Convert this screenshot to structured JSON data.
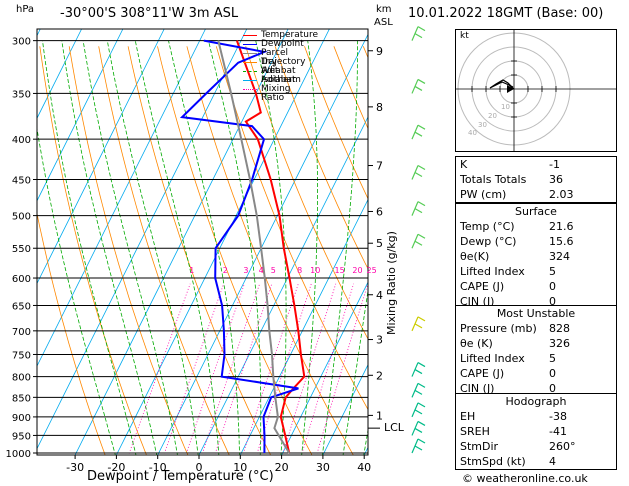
{
  "header": {
    "location": "-30°00'S  308°11'W  3m  ASL",
    "datetime": "10.01.2022  18GMT  (Base: 00)",
    "pressure_unit": "hPa",
    "height_unit_top": "km",
    "height_unit_bottom": "ASL"
  },
  "axes": {
    "xlabel": "Dewpoint / Temperature (°C)",
    "mixing_ratio_label": "Mixing Ratio (g/kg)",
    "lcl_label": "LCL"
  },
  "chart_data": {
    "type": "line",
    "title": "",
    "xlabel": "Dewpoint / Temperature (°C)",
    "ylabel": "hPa",
    "x_ticks": [
      -30,
      -20,
      -10,
      0,
      10,
      20,
      30,
      40
    ],
    "xlim": [
      -35,
      40
    ],
    "p_ticks": [
      300,
      350,
      400,
      450,
      500,
      550,
      600,
      650,
      700,
      750,
      800,
      850,
      900,
      950,
      1000
    ],
    "ylim": [
      1010,
      300
    ],
    "km_ticks": [
      {
        "p": 309,
        "km": "9"
      },
      {
        "p": 364,
        "km": "8"
      },
      {
        "p": 432,
        "km": "7"
      },
      {
        "p": 494,
        "km": "6"
      },
      {
        "p": 542,
        "km": "5"
      },
      {
        "p": 630,
        "km": "4"
      },
      {
        "p": 718,
        "km": "3"
      },
      {
        "p": 797,
        "km": "2"
      },
      {
        "p": 896,
        "km": "1"
      }
    ],
    "mixing_ratio_lines": [
      "1",
      "2",
      "3",
      "4",
      "5",
      "8",
      "10",
      "15",
      "20",
      "25"
    ],
    "legend": [
      "Temperature",
      "Dewpoint",
      "Parcel Trajectory",
      "Dry Adiabat",
      "Wet Adiabat",
      "Isotherm",
      "Mixing Ratio"
    ],
    "legend_colors": [
      "#ff0000",
      "#0000ff",
      "#888888",
      "#ff8800",
      "#00aa00",
      "#00aaee",
      "#ff00aa"
    ],
    "series": [
      {
        "name": "Temperature",
        "color": "#ff0000",
        "points": [
          [
            1000,
            21.6
          ],
          [
            950,
            18.5
          ],
          [
            900,
            15.2
          ],
          [
            850,
            14.0
          ],
          [
            828,
            14.8
          ],
          [
            800,
            16.0
          ],
          [
            750,
            12.5
          ],
          [
            700,
            9.0
          ],
          [
            650,
            5.0
          ],
          [
            600,
            0.5
          ],
          [
            550,
            -4.5
          ],
          [
            500,
            -9.5
          ],
          [
            450,
            -16.0
          ],
          [
            400,
            -24.0
          ],
          [
            380,
            -29.0
          ],
          [
            370,
            -26.5
          ],
          [
            350,
            -30.0
          ],
          [
            300,
            -41.0
          ]
        ]
      },
      {
        "name": "Dewpoint",
        "color": "#0000ff",
        "points": [
          [
            1000,
            15.6
          ],
          [
            950,
            13.5
          ],
          [
            900,
            11.0
          ],
          [
            850,
            10.5
          ],
          [
            828,
            16.0
          ],
          [
            800,
            -4.0
          ],
          [
            750,
            -6.0
          ],
          [
            700,
            -9.0
          ],
          [
            650,
            -12.5
          ],
          [
            600,
            -17.5
          ],
          [
            550,
            -21.0
          ],
          [
            500,
            -19.5
          ],
          [
            450,
            -20.5
          ],
          [
            400,
            -22.5
          ],
          [
            385,
            -27.0
          ],
          [
            375,
            -45.0
          ],
          [
            350,
            -42.0
          ],
          [
            320,
            -38.0
          ],
          [
            310,
            -33.0
          ],
          [
            300,
            -49.0
          ]
        ]
      },
      {
        "name": "Parcel Trajectory",
        "color": "#888888",
        "points": [
          [
            1000,
            21.6
          ],
          [
            930,
            15.0
          ],
          [
            900,
            14.5
          ],
          [
            850,
            11.5
          ],
          [
            800,
            8.5
          ],
          [
            750,
            5.5
          ],
          [
            700,
            2.0
          ],
          [
            650,
            -1.5
          ],
          [
            600,
            -5.5
          ],
          [
            550,
            -10.0
          ],
          [
            500,
            -15.0
          ],
          [
            450,
            -21.0
          ],
          [
            400,
            -28.0
          ],
          [
            350,
            -36.0
          ],
          [
            300,
            -45.5
          ]
        ]
      }
    ]
  },
  "hodograph": {
    "label": "kt",
    "ring_labels": [
      "10",
      "20",
      "30",
      "40"
    ]
  },
  "indices": {
    "k_label": "K",
    "k": "-1",
    "tt_label": "Totals Totals",
    "tt": "36",
    "pw_label": "PW (cm)",
    "pw": "2.03"
  },
  "surface": {
    "title": "Surface",
    "temp_label": "Temp (°C)",
    "temp": "21.6",
    "dewp_label": "Dewp (°C)",
    "dewp": "15.6",
    "theta_label": "θe(K)",
    "theta": "324",
    "li_label": "Lifted Index",
    "li": "5",
    "cape_label": "CAPE (J)",
    "cape": "0",
    "cin_label": "CIN (J)",
    "cin": "0"
  },
  "most_unstable": {
    "title": "Most Unstable",
    "pres_label": "Pressure (mb)",
    "pres": "828",
    "theta_label": "θe (K)",
    "theta": "326",
    "li_label": "Lifted Index",
    "li": "5",
    "cape_label": "CAPE (J)",
    "cape": "0",
    "cin_label": "CIN (J)",
    "cin": "0"
  },
  "hodo_stats": {
    "title": "Hodograph",
    "eh_label": "EH",
    "eh": "-38",
    "sreh_label": "SREH",
    "sreh": "-41",
    "stmdir_label": "StmDir",
    "stmdir": "260°",
    "stmspd_label": "StmSpd (kt)",
    "stmspd": "4"
  },
  "footer": {
    "copyright": "© weatheronline.co.uk"
  }
}
